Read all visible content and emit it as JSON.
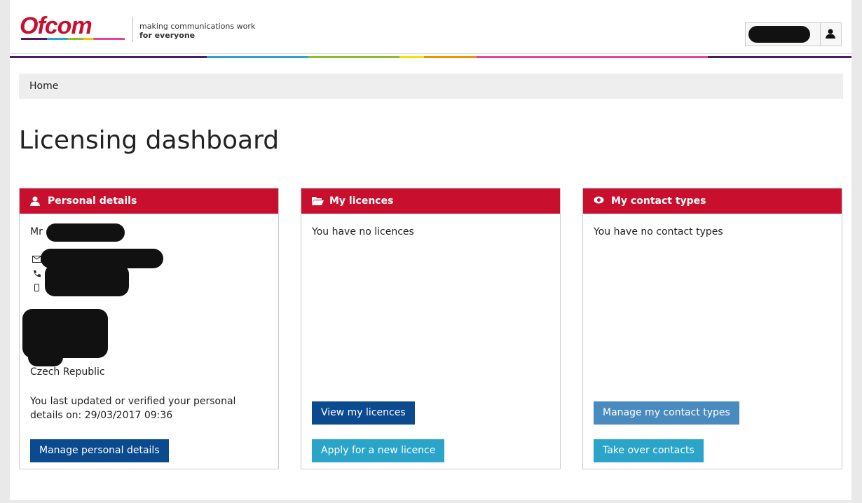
{
  "header": {
    "logo": "Ofcom",
    "tagline_line1": "making communications work",
    "tagline_line2": "for everyone"
  },
  "breadcrumb": {
    "home": "Home"
  },
  "page_title": "Licensing dashboard",
  "panels": [
    {
      "title": "Personal details",
      "name_prefix": "Mr",
      "country": "Czech Republic",
      "updated_note": "You last updated or verified your personal details on: 29/03/2017 09:36",
      "buttons": [
        "Manage personal details"
      ]
    },
    {
      "title": "My licences",
      "message": "You have no licences",
      "buttons": [
        "View my licences",
        "Apply for a new licence"
      ]
    },
    {
      "title": "My contact types",
      "message": "You have no contact types",
      "buttons": [
        "Manage my contact types",
        "Take over contacts"
      ]
    }
  ]
}
